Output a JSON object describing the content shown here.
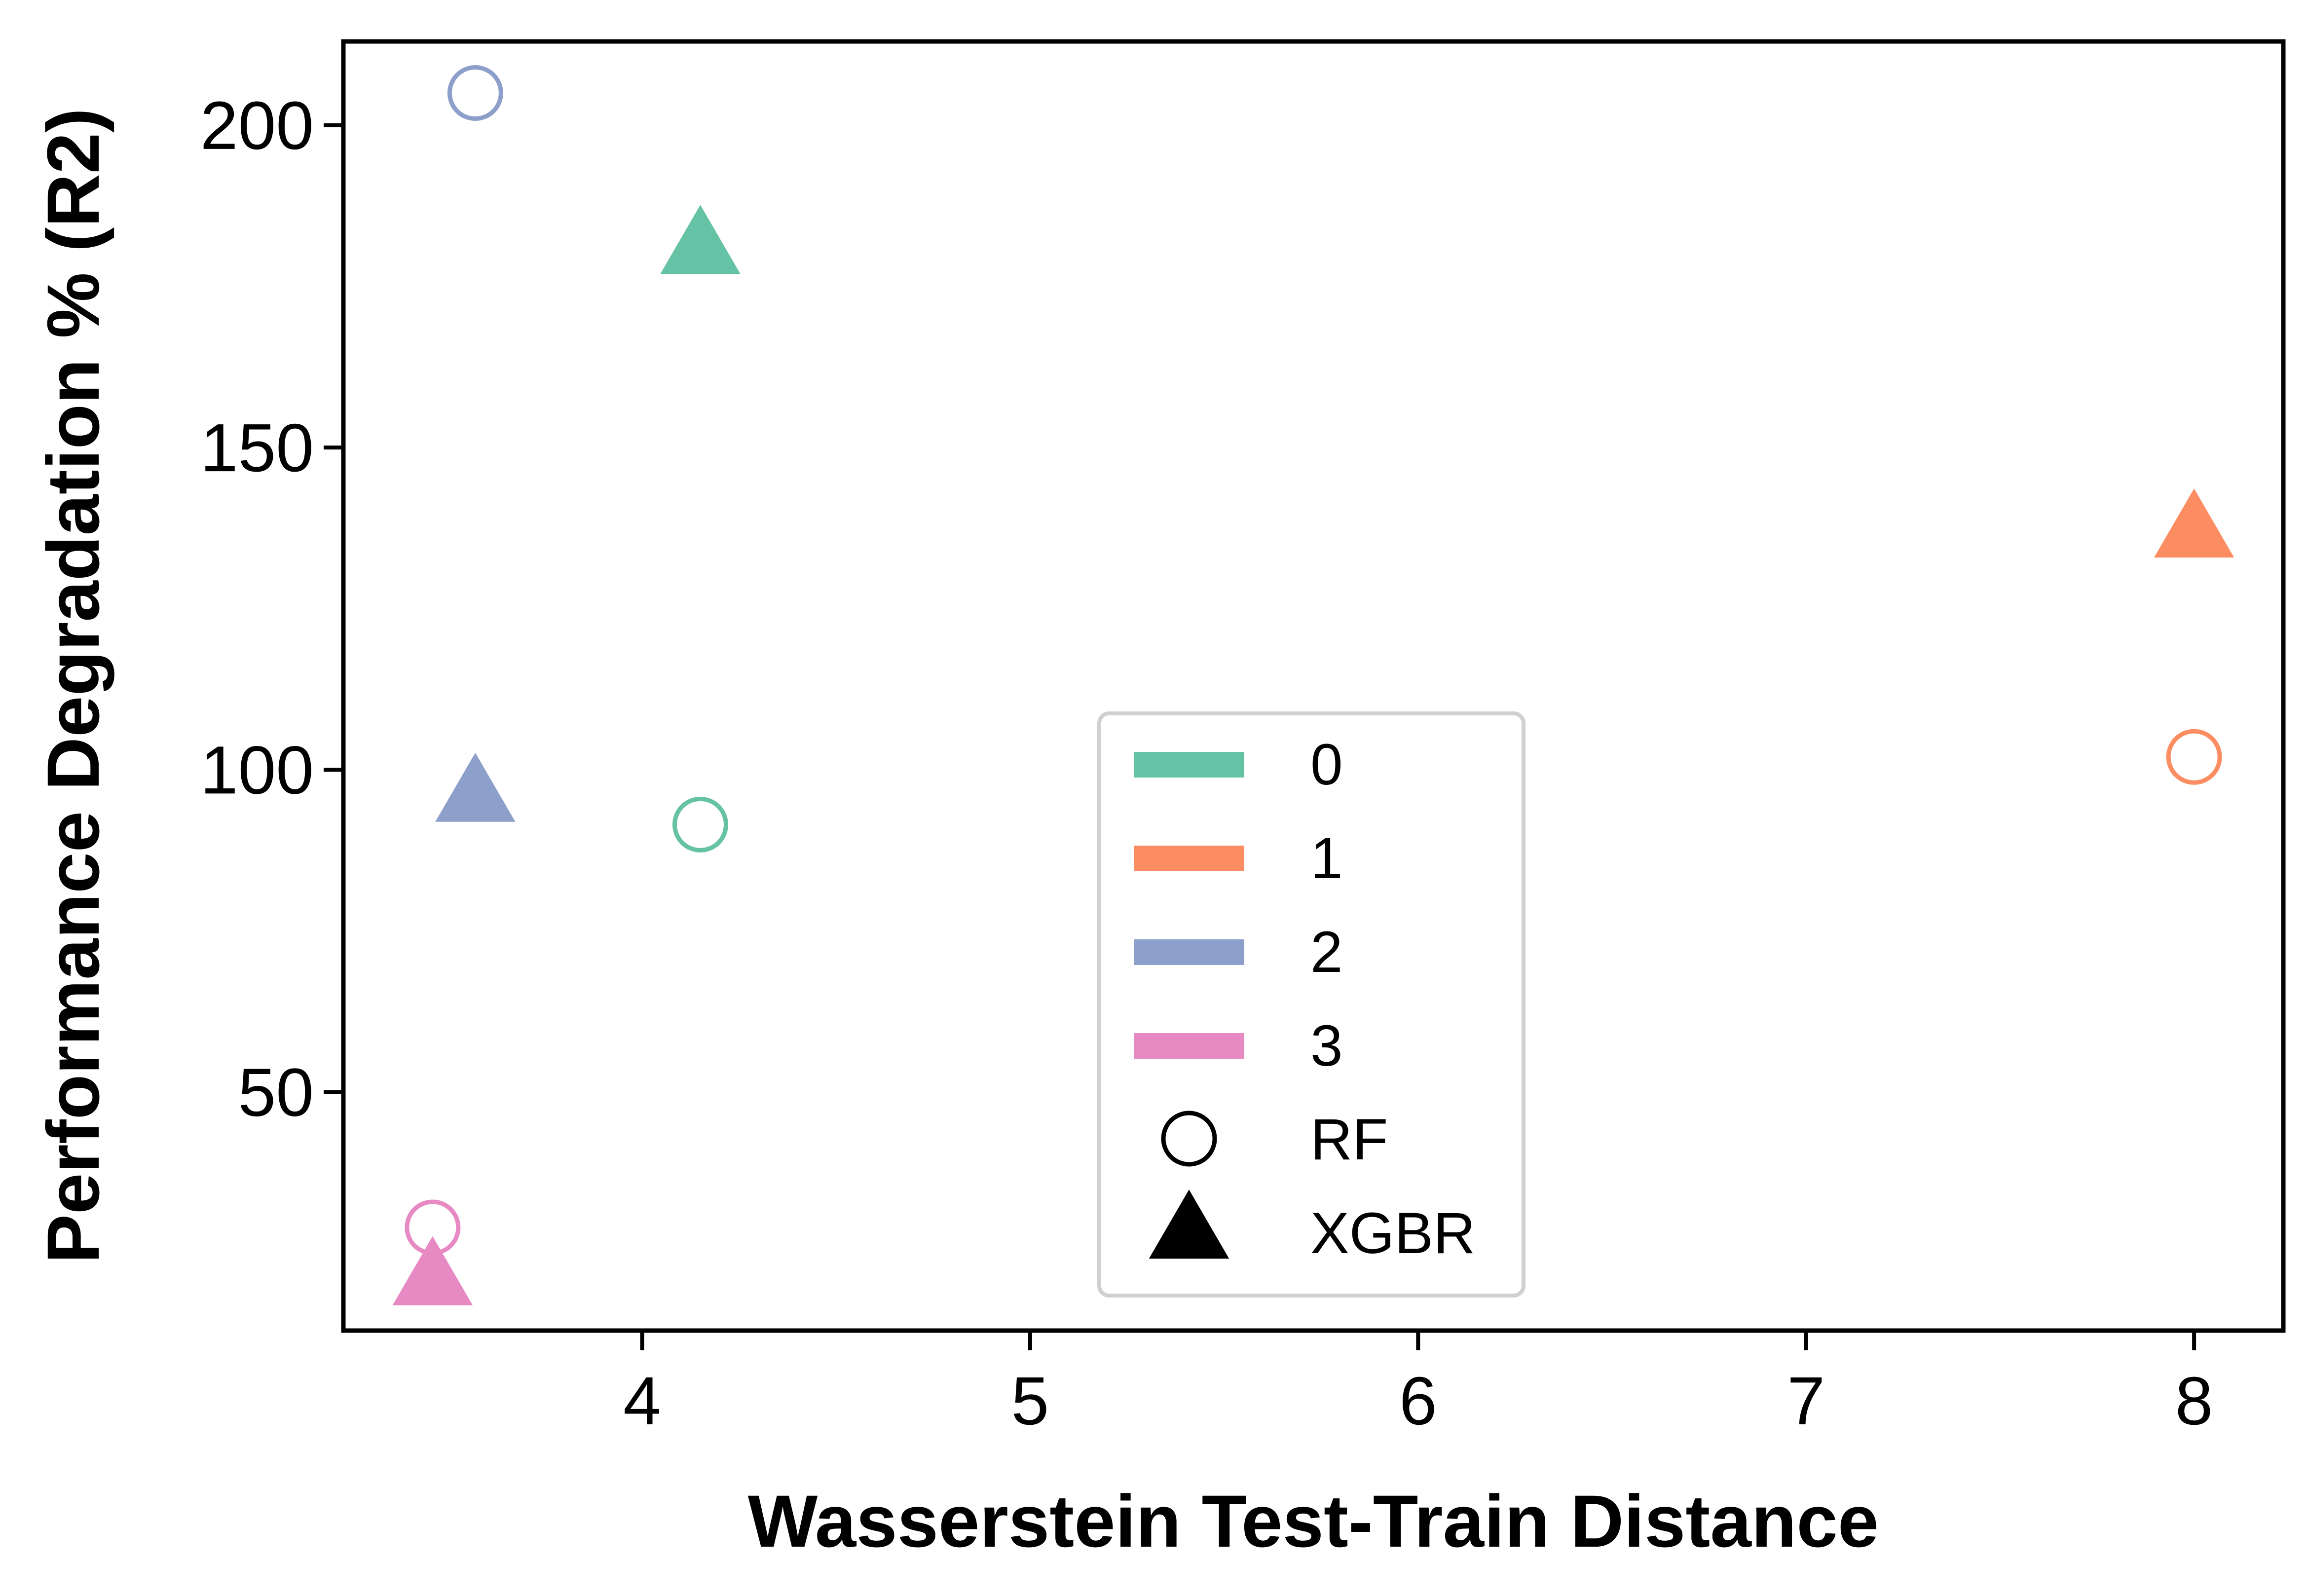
{
  "chart_data": {
    "type": "scatter",
    "xlabel": "Wasserstein Test-Train Distance",
    "ylabel": "Performance Degradation % (R2)",
    "xlim": [
      3.23,
      8.23
    ],
    "ylim": [
      13,
      213
    ],
    "xticks": [
      4,
      5,
      6,
      7,
      8
    ],
    "yticks": [
      50,
      100,
      150,
      200
    ],
    "grid": false,
    "legend_position": "lower-center",
    "groups": [
      {
        "label": "0",
        "color": "#66c2a5"
      },
      {
        "label": "1",
        "color": "#fc8d62"
      },
      {
        "label": "2",
        "color": "#8da0cb"
      },
      {
        "label": "3",
        "color": "#e78ac3"
      }
    ],
    "models": [
      {
        "label": "RF",
        "marker": "circle-open"
      },
      {
        "label": "XGBR",
        "marker": "triangle-filled"
      }
    ],
    "points": [
      {
        "group": "0",
        "model": "RF",
        "x": 4.15,
        "y": 91.5
      },
      {
        "group": "0",
        "model": "XGBR",
        "x": 4.15,
        "y": 181
      },
      {
        "group": "1",
        "model": "RF",
        "x": 8.0,
        "y": 102
      },
      {
        "group": "1",
        "model": "XGBR",
        "x": 8.0,
        "y": 137
      },
      {
        "group": "2",
        "model": "RF",
        "x": 3.57,
        "y": 205
      },
      {
        "group": "2",
        "model": "XGBR",
        "x": 3.57,
        "y": 96
      },
      {
        "group": "3",
        "model": "RF",
        "x": 3.46,
        "y": 29
      },
      {
        "group": "3",
        "model": "XGBR",
        "x": 3.46,
        "y": 21
      }
    ]
  }
}
